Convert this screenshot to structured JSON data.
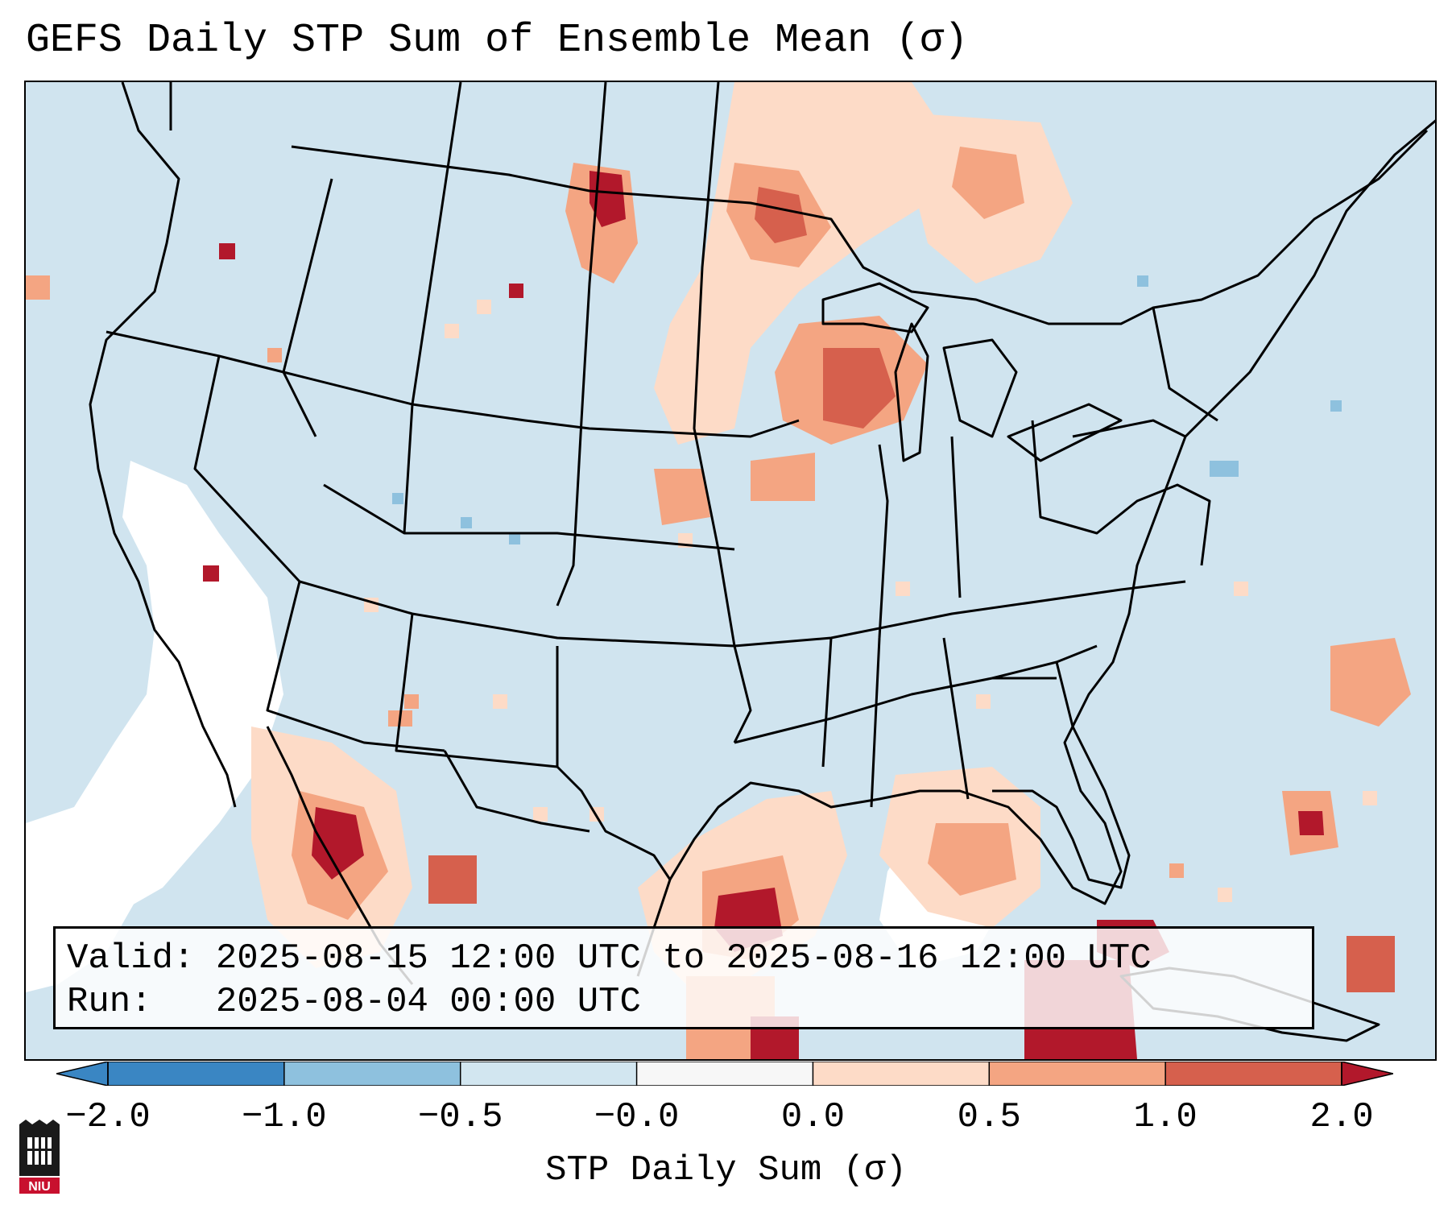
{
  "title": "GEFS Daily STP Sum of Ensemble Mean (σ)",
  "info": {
    "valid_line": "Valid: 2025-08-15 12:00 UTC to 2025-08-16 12:00 UTC",
    "run_line": "Run:   2025-08-04 00:00 UTC"
  },
  "colorbar": {
    "label": "STP Daily Sum (σ)",
    "ticks": [
      "−2.0",
      "−1.0",
      "−0.5",
      "−0.0",
      "0.0",
      "0.5",
      "1.0",
      "2.0"
    ],
    "colors": [
      "#3a86c3",
      "#8ec1de",
      "#d2e6f0",
      "#f7f7f7",
      "#fddbc7",
      "#f4a582",
      "#d6604d",
      "#b2182b"
    ],
    "extend": "both"
  },
  "map": {
    "region": "Continental United States",
    "ocean_color": "#d0e4ef",
    "border_color": "#000000"
  },
  "logo": {
    "text": "NIU",
    "color": "#c8102e"
  }
}
